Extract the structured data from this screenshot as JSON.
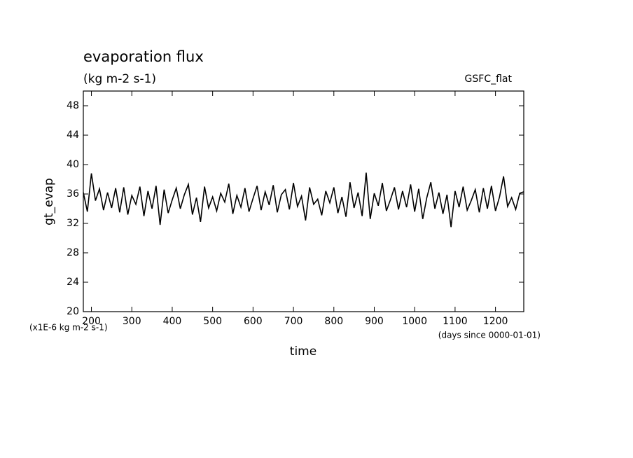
{
  "chart_data": {
    "type": "line",
    "title": "evaporation flux",
    "subtitle": "(kg m-2 s-1)",
    "annotation": "GSFC_flat",
    "y_label": "gt_evap",
    "x_label": "time",
    "y_units": "(x1E-6 kg m-2 s-1)",
    "x_units": "(days since 0000-01-01)",
    "x": [
      180,
      190,
      200,
      210,
      220,
      230,
      240,
      250,
      260,
      270,
      280,
      290,
      300,
      310,
      320,
      330,
      340,
      350,
      360,
      370,
      380,
      390,
      400,
      410,
      420,
      430,
      440,
      450,
      460,
      470,
      480,
      490,
      500,
      510,
      520,
      530,
      540,
      550,
      560,
      570,
      580,
      590,
      600,
      610,
      620,
      630,
      640,
      650,
      660,
      670,
      680,
      690,
      700,
      710,
      720,
      730,
      740,
      750,
      760,
      770,
      780,
      790,
      800,
      810,
      820,
      830,
      840,
      850,
      860,
      870,
      880,
      890,
      900,
      910,
      920,
      930,
      940,
      950,
      960,
      970,
      980,
      990,
      1000,
      1010,
      1020,
      1030,
      1040,
      1050,
      1060,
      1070,
      1080,
      1090,
      1100,
      1110,
      1120,
      1130,
      1140,
      1150,
      1160,
      1170,
      1180,
      1190,
      1200,
      1210,
      1220,
      1230,
      1240,
      1250,
      1260,
      1270
    ],
    "series": [
      {
        "color": "#000000",
        "values": [
          36.2,
          33.6,
          38.8,
          35.1,
          36.7,
          33.8,
          36.2,
          34.1,
          36.8,
          33.5,
          36.9,
          33.2,
          35.8,
          34.6,
          37.0,
          33.0,
          36.4,
          34.0,
          37.1,
          31.8,
          36.6,
          33.4,
          35.2,
          36.8,
          34.0,
          35.9,
          37.3,
          33.2,
          35.5,
          32.2,
          37.0,
          34.1,
          35.6,
          33.7,
          36.1,
          34.9,
          37.4,
          33.3,
          35.8,
          34.2,
          36.8,
          33.6,
          35.4,
          37.1,
          33.8,
          36.3,
          34.5,
          37.2,
          33.5,
          35.9,
          36.6,
          33.9,
          37.5,
          34.3,
          35.7,
          32.4,
          36.9,
          34.6,
          35.3,
          33.1,
          36.4,
          34.8,
          36.9,
          33.4,
          35.6,
          32.9,
          37.6,
          34.1,
          36.2,
          33.0,
          38.9,
          32.6,
          36.1,
          34.4,
          37.5,
          33.7,
          35.2,
          36.9,
          33.9,
          36.4,
          34.2,
          37.3,
          33.6,
          36.7,
          32.6,
          35.5,
          37.6,
          34.0,
          36.2,
          33.3,
          35.9,
          31.5,
          36.4,
          34.2,
          37.0,
          33.8,
          35.1,
          36.6,
          33.5,
          36.8,
          34.0,
          37.1,
          33.7,
          35.6,
          38.4,
          34.3,
          35.5,
          33.9,
          36.1,
          36.3
        ]
      }
    ],
    "xlim": [
      180,
      1270
    ],
    "ylim": [
      20,
      50
    ],
    "xticks": [
      200,
      300,
      400,
      500,
      600,
      700,
      800,
      900,
      1000,
      1100,
      1200
    ],
    "yticks": [
      20,
      24,
      28,
      32,
      36,
      40,
      44,
      48
    ]
  }
}
